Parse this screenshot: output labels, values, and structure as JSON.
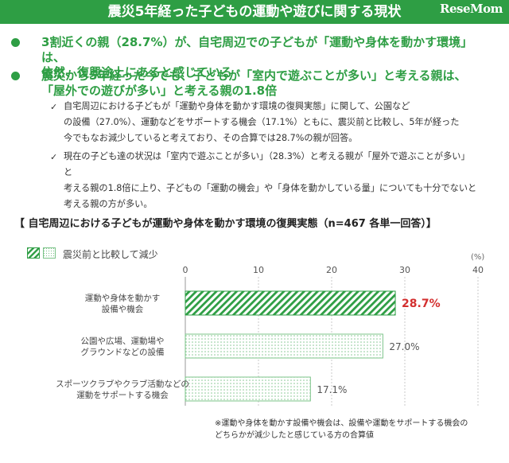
{
  "header": {
    "title": "震災5年経った子どもの運動や遊びに関する現状",
    "logo": "ReseMom"
  },
  "bullets": [
    {
      "lines": [
        "3割近くの親（28.7%）が、自宅周辺での子どもが「運動や身体を動かす環境」は、",
        "依然、復興途上にあると感じている"
      ]
    },
    {
      "lines": [
        "震災から5年経った今でも、子どもが「室内で遊ぶことが多い」と考える親は、",
        "「屋外での遊びが多い」と考える親の1.8倍"
      ]
    }
  ],
  "subpoints": [
    {
      "lines": [
        "自宅周辺における子どもが「運動や身体を動かす環境の復興実態」に関して、公園など",
        "の設備（27.0%）、運動などをサポートする機会（17.1%）ともに、震災前と比較し、5年が経った",
        "今でもなお減少していると考えており、その合算では28.7%の親が回答。"
      ]
    },
    {
      "lines": [
        "現在の子ども達の状況は「室内で遊ぶことが多い」（28.3%）と考える親が「屋外で遊ぶことが多い」と",
        "考える親の1.8倍に上り、子どもの「運動の機会」や「身体を動かしている量」についても十分でないと",
        "考える親の方が多い。"
      ]
    }
  ],
  "chart_data": {
    "type": "bar",
    "orientation": "horizontal",
    "title": "【 自宅周辺における子どもが運動や身体を動かす環境の復興実態（n=467 各単一回答）】",
    "legend": [
      "震災前と比較して減少"
    ],
    "unit": "(%)",
    "xlim": [
      0,
      40
    ],
    "ticks": [
      "0",
      "10",
      "20",
      "30",
      "40"
    ],
    "categories": [
      [
        "運動や身体を動かす",
        "設備や機会"
      ],
      [
        "公園や広場、運動場や",
        "グラウンドなどの設備"
      ],
      [
        "スポーツクラブやクラブ活動などの",
        "運動をサポートする機会"
      ]
    ],
    "values": [
      28.7,
      27.0,
      17.1
    ],
    "value_labels": [
      "28.7%",
      "27.0%",
      "17.1%"
    ],
    "highlight_index": 0,
    "colors": {
      "highlight_bar": "#2e9e44",
      "highlight_label": "#d32f2f",
      "normal_bar": "#7dc48a",
      "normal_label": "#555555"
    }
  },
  "footnote": [
    "※運動や身体を動かす設備や機会は、設備や運動をサポートする機会の",
    "どちらかが減少したと感じている方の合算値"
  ]
}
